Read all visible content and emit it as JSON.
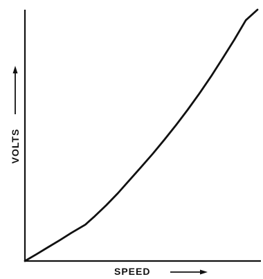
{
  "chart_data": {
    "type": "line",
    "title": "",
    "xlabel": "SPEED",
    "ylabel": "VOLTS",
    "grid": false,
    "legend": "none",
    "xlim": [
      0,
      1
    ],
    "ylim": [
      0,
      1
    ],
    "series": [
      {
        "x": [
          0,
          0.05,
          0.1,
          0.15,
          0.2,
          0.26,
          0.3,
          0.35,
          0.4,
          0.45,
          0.5,
          0.55,
          0.6,
          0.65,
          0.7,
          0.75,
          0.8,
          0.85,
          0.9,
          0.95,
          1.0
        ],
        "y": [
          0,
          0.027,
          0.055,
          0.083,
          0.112,
          0.145,
          0.178,
          0.222,
          0.27,
          0.322,
          0.374,
          0.427,
          0.483,
          0.541,
          0.602,
          0.666,
          0.734,
          0.806,
          0.88,
          0.958,
          1.0
        ]
      }
    ]
  }
}
